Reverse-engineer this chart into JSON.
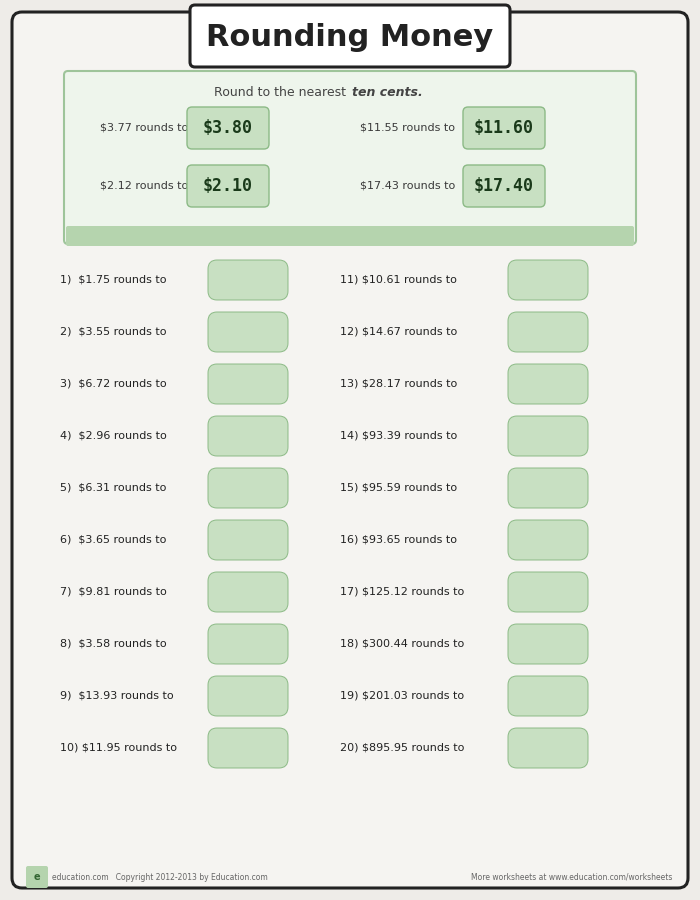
{
  "title": "Rounding Money",
  "bg_color": "#eeece8",
  "page_bg": "#f5f4f1",
  "box_bg": "#ffffff",
  "example_box_border": "#9ec49a",
  "example_box_bg": "#eef5ec",
  "green_bar": "#b5d4ae",
  "answer_fill": "#c8e0c2",
  "answer_stroke": "#8cba86",
  "text_dark": "#222222",
  "text_mid": "#444444",
  "text_light": "#666666",
  "ex_label_color": "#3a3a3a",
  "ex_answer_color": "#1a3a1a",
  "problems_left": [
    "1)  $1.75 rounds to",
    "2)  $3.55 rounds to",
    "3)  $6.72 rounds to",
    "4)  $2.96 rounds to",
    "5)  $6.31 rounds to",
    "6)  $3.65 rounds to",
    "7)  $9.81 rounds to",
    "8)  $3.58 rounds to",
    "9)  $13.93 rounds to",
    "10) $11.95 rounds to"
  ],
  "problems_right": [
    "11) $10.61 rounds to",
    "12) $14.67 rounds to",
    "13) $28.17 rounds to",
    "14) $93.39 rounds to",
    "15) $95.59 rounds to",
    "16) $93.65 rounds to",
    "17) $125.12 rounds to",
    "18) $300.44 rounds to",
    "19) $201.03 rounds to",
    "20) $895.95 rounds to"
  ],
  "ex_left": [
    {
      "q": "$3.77 rounds to",
      "a": "$3.80"
    },
    {
      "q": "$2.12 rounds to",
      "a": "$2.10"
    }
  ],
  "ex_right": [
    {
      "q": "$11.55 rounds to",
      "a": "$11.60"
    },
    {
      "q": "$17.43 rounds to",
      "a": "$17.40"
    }
  ],
  "footer_left": "education.com   Copyright 2012-2013 by Education.com",
  "footer_right": "More worksheets at www.education.com/worksheets"
}
